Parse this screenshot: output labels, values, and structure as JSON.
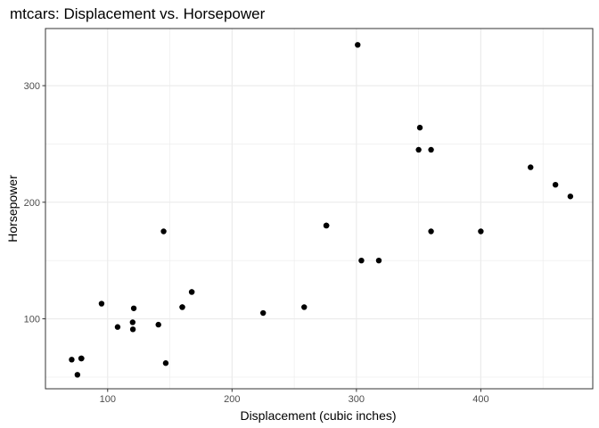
{
  "chart_data": {
    "type": "scatter",
    "title": "mtcars: Displacement vs. Horsepower",
    "xlabel": "Displacement (cubic inches)",
    "ylabel": "Horsepower",
    "xlim": [
      50,
      490
    ],
    "ylim": [
      40,
      349
    ],
    "x_major_ticks": [
      100,
      200,
      300,
      400
    ],
    "x_minor_ticks": [
      50,
      150,
      250,
      350,
      450
    ],
    "y_major_ticks": [
      100,
      200,
      300
    ],
    "y_minor_ticks": [
      50,
      150,
      250
    ],
    "grid": true,
    "colors": {
      "point": "#000000",
      "grid": "#ebebeb",
      "border": "#333333"
    },
    "points": [
      {
        "x": 160,
        "y": 110
      },
      {
        "x": 160,
        "y": 110
      },
      {
        "x": 108,
        "y": 93
      },
      {
        "x": 258,
        "y": 110
      },
      {
        "x": 360,
        "y": 175
      },
      {
        "x": 225,
        "y": 105
      },
      {
        "x": 360,
        "y": 245
      },
      {
        "x": 146.7,
        "y": 62
      },
      {
        "x": 140.8,
        "y": 95
      },
      {
        "x": 167.6,
        "y": 123
      },
      {
        "x": 167.6,
        "y": 123
      },
      {
        "x": 275.8,
        "y": 180
      },
      {
        "x": 275.8,
        "y": 180
      },
      {
        "x": 275.8,
        "y": 180
      },
      {
        "x": 472,
        "y": 205
      },
      {
        "x": 460,
        "y": 215
      },
      {
        "x": 440,
        "y": 230
      },
      {
        "x": 78.7,
        "y": 66
      },
      {
        "x": 75.7,
        "y": 52
      },
      {
        "x": 71.1,
        "y": 65
      },
      {
        "x": 120.1,
        "y": 97
      },
      {
        "x": 318,
        "y": 150
      },
      {
        "x": 304,
        "y": 150
      },
      {
        "x": 350,
        "y": 245
      },
      {
        "x": 400,
        "y": 175
      },
      {
        "x": 79,
        "y": 66
      },
      {
        "x": 120.3,
        "y": 91
      },
      {
        "x": 95.1,
        "y": 113
      },
      {
        "x": 351,
        "y": 264
      },
      {
        "x": 145,
        "y": 175
      },
      {
        "x": 301,
        "y": 335
      },
      {
        "x": 121,
        "y": 109
      }
    ]
  }
}
